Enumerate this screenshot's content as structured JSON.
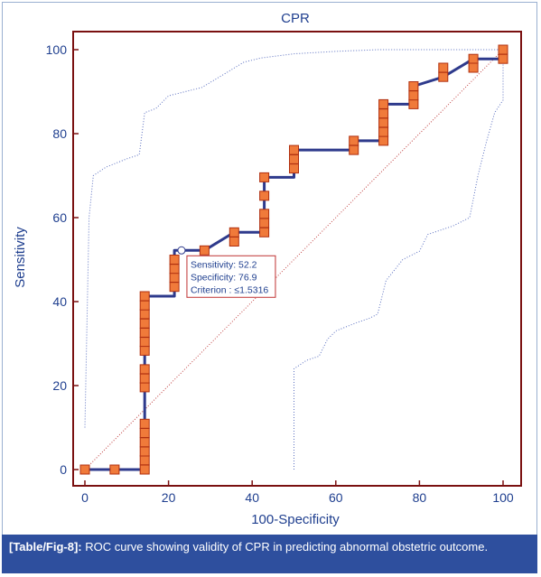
{
  "caption": {
    "tag": "[Table/Fig-8]:",
    "text": " ROC curve showing validity of CPR in predicting abnormal obstetric outcome."
  },
  "chart_data": {
    "type": "line",
    "title": "CPR",
    "xlabel": "100-Specificity",
    "ylabel": "Sensitivity",
    "xlim": [
      0,
      100
    ],
    "ylim": [
      0,
      100
    ],
    "xticks": [
      0,
      20,
      40,
      60,
      80,
      100
    ],
    "yticks": [
      0,
      20,
      40,
      60,
      80,
      100
    ],
    "grid": false,
    "colors": {
      "curve": "#2e3a8c",
      "marker": "#f07a3a",
      "marker_edge": "#b03010",
      "diagonal": "#c04040",
      "ci": "#5a6fc0",
      "frame": "#7a1010"
    },
    "roc_curve": [
      [
        0,
        0
      ],
      [
        7.1,
        0
      ],
      [
        14.3,
        0
      ],
      [
        14.3,
        41.3
      ],
      [
        21.4,
        41.3
      ],
      [
        21.4,
        52.2
      ],
      [
        28.6,
        52.2
      ],
      [
        35.7,
        56.5
      ],
      [
        42.9,
        56.5
      ],
      [
        42.9,
        69.6
      ],
      [
        50,
        69.6
      ],
      [
        50,
        76.1
      ],
      [
        64.3,
        76.1
      ],
      [
        64.3,
        78.3
      ],
      [
        71.4,
        78.3
      ],
      [
        71.4,
        87.0
      ],
      [
        78.6,
        87.0
      ],
      [
        78.6,
        91.3
      ],
      [
        85.7,
        93.5
      ],
      [
        92.9,
        97.8
      ],
      [
        100,
        97.8
      ],
      [
        100,
        100
      ]
    ],
    "markers": [
      [
        0,
        0
      ],
      [
        7.1,
        0
      ],
      [
        14.3,
        0
      ],
      [
        14.3,
        2.2
      ],
      [
        14.3,
        4.3
      ],
      [
        14.3,
        6.5
      ],
      [
        14.3,
        8.7
      ],
      [
        14.3,
        10.9
      ],
      [
        14.3,
        19.6
      ],
      [
        14.3,
        21.7
      ],
      [
        14.3,
        23.9
      ],
      [
        14.3,
        28.3
      ],
      [
        14.3,
        30.4
      ],
      [
        14.3,
        32.6
      ],
      [
        14.3,
        34.8
      ],
      [
        14.3,
        37.0
      ],
      [
        14.3,
        39.1
      ],
      [
        14.3,
        41.3
      ],
      [
        21.4,
        43.5
      ],
      [
        21.4,
        45.7
      ],
      [
        21.4,
        47.8
      ],
      [
        21.4,
        50.0
      ],
      [
        28.6,
        52.2
      ],
      [
        35.7,
        54.3
      ],
      [
        35.7,
        56.5
      ],
      [
        42.9,
        56.5
      ],
      [
        42.9,
        58.7
      ],
      [
        42.9,
        60.9
      ],
      [
        42.9,
        65.2
      ],
      [
        42.9,
        69.6
      ],
      [
        50,
        71.7
      ],
      [
        50,
        73.9
      ],
      [
        50,
        76.1
      ],
      [
        64.3,
        76.1
      ],
      [
        64.3,
        78.3
      ],
      [
        71.4,
        78.3
      ],
      [
        71.4,
        80.4
      ],
      [
        71.4,
        82.6
      ],
      [
        71.4,
        84.8
      ],
      [
        71.4,
        87.0
      ],
      [
        78.6,
        87.0
      ],
      [
        78.6,
        89.1
      ],
      [
        78.6,
        91.3
      ],
      [
        85.7,
        93.5
      ],
      [
        85.7,
        95.7
      ],
      [
        92.9,
        97.8
      ],
      [
        92.9,
        95.7
      ],
      [
        100,
        97.8
      ],
      [
        100,
        100
      ]
    ],
    "ci_upper": [
      [
        0,
        10
      ],
      [
        1,
        60
      ],
      [
        2,
        70
      ],
      [
        5,
        72
      ],
      [
        10,
        74
      ],
      [
        13,
        75
      ],
      [
        14.3,
        85
      ],
      [
        17,
        86
      ],
      [
        20,
        89
      ],
      [
        24,
        90
      ],
      [
        28,
        91
      ],
      [
        33,
        94
      ],
      [
        38,
        97
      ],
      [
        42,
        98
      ],
      [
        50,
        99
      ],
      [
        60,
        99.6
      ],
      [
        70,
        100
      ],
      [
        100,
        100
      ]
    ],
    "ci_lower": [
      [
        50,
        0
      ],
      [
        50,
        24
      ],
      [
        53,
        26
      ],
      [
        56,
        27
      ],
      [
        58,
        31
      ],
      [
        60,
        33
      ],
      [
        65,
        35
      ],
      [
        68,
        36
      ],
      [
        70,
        37
      ],
      [
        72,
        45
      ],
      [
        76,
        50
      ],
      [
        80,
        52
      ],
      [
        82,
        56
      ],
      [
        88,
        58
      ],
      [
        92,
        60
      ],
      [
        94,
        70
      ],
      [
        96,
        78
      ],
      [
        98,
        85
      ],
      [
        100,
        88
      ],
      [
        100,
        100
      ]
    ],
    "selected_point": {
      "x": 23.1,
      "y": 52.2
    },
    "tooltip": {
      "sensitivity": "Sensitivity: 52.2",
      "specificity": "Specificity: 76.9",
      "criterion": "Criterion : ≤1.5316"
    }
  }
}
